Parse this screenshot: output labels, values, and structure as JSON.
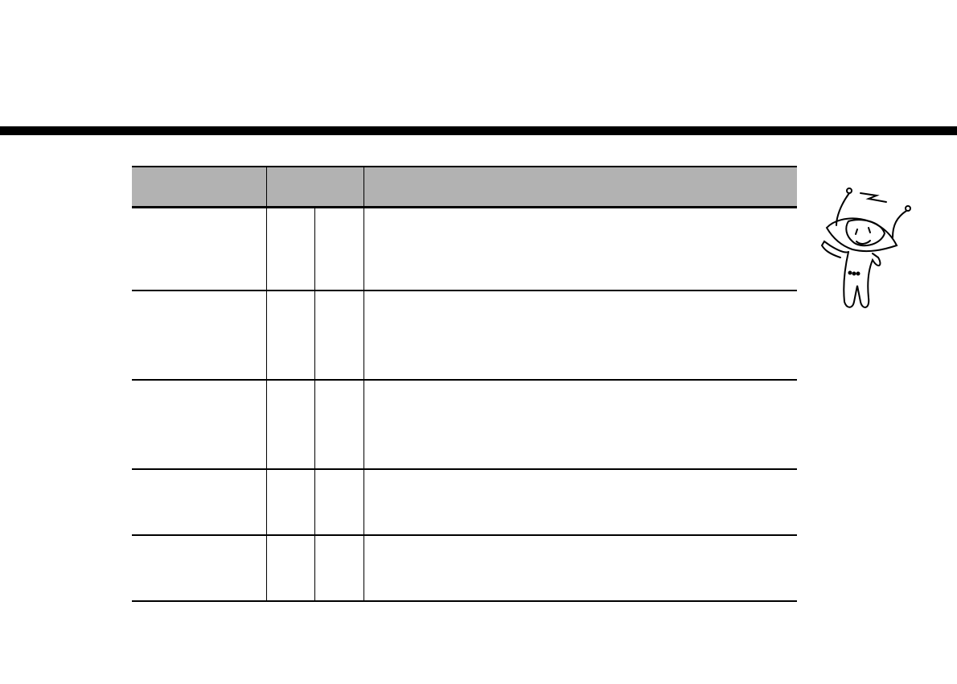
{
  "header": {
    "columns": [
      "",
      "",
      ""
    ]
  },
  "table": {
    "rows": [
      [
        "",
        "",
        "",
        ""
      ],
      [
        "",
        "",
        "",
        ""
      ],
      [
        "",
        "",
        "",
        ""
      ],
      [
        "",
        "",
        "",
        ""
      ],
      [
        "",
        "",
        "",
        ""
      ]
    ]
  },
  "decoration": {
    "icon": "mascot-character-icon"
  },
  "colors": {
    "header_bg": "#b2b2b2",
    "rule": "#000000"
  }
}
